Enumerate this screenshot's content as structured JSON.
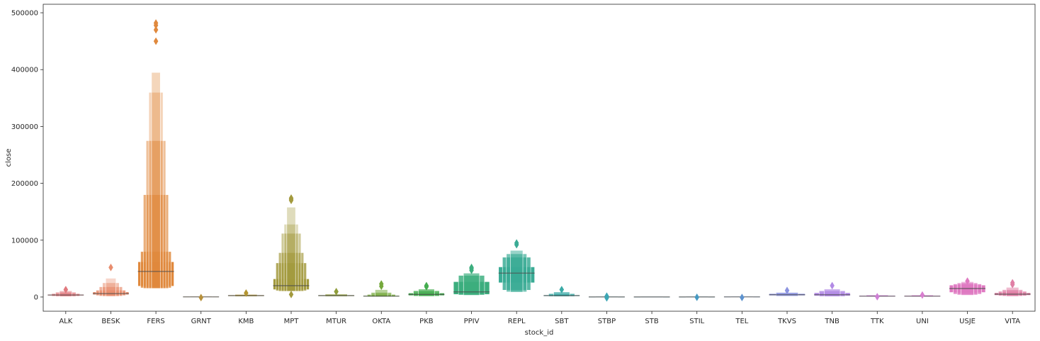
{
  "chart_data": {
    "type": "boxen",
    "xlabel": "stock_id",
    "ylabel": "close",
    "ylim": [
      -25000,
      515000
    ],
    "yticks": [
      0,
      100000,
      200000,
      300000,
      400000,
      500000
    ],
    "ytick_labels": [
      "0",
      "100000",
      "200000",
      "300000",
      "400000",
      "500000"
    ],
    "grid": false,
    "categories": [
      "ALK",
      "BESK",
      "FERS",
      "GRNT",
      "KMB",
      "MPT",
      "MTUR",
      "OKTA",
      "PKB",
      "PPIV",
      "REPL",
      "SBT",
      "STBP",
      "STB",
      "STIL",
      "TEL",
      "TKVS",
      "TNB",
      "TTK",
      "UNI",
      "USJE",
      "VITA"
    ],
    "series": [
      {
        "category": "ALK",
        "color": "#e1797e",
        "median": 3500,
        "boxes": [
          [
            2500,
            4500
          ],
          [
            1500,
            6000
          ],
          [
            1000,
            8500
          ],
          [
            800,
            11000
          ]
        ],
        "outliers": [
          13000
        ]
      },
      {
        "category": "BESK",
        "color": "#e88d6e",
        "median": 6000,
        "boxes": [
          [
            4000,
            9000
          ],
          [
            2500,
            12000
          ],
          [
            1500,
            18000
          ],
          [
            1200,
            25000
          ],
          [
            1000,
            33000
          ]
        ],
        "outliers": [
          52000
        ]
      },
      {
        "category": "FERS",
        "color": "#e0893d",
        "median": 45000,
        "boxes": [
          [
            19000,
            62000
          ],
          [
            16000,
            80000
          ],
          [
            15000,
            180000
          ],
          [
            15000,
            275000
          ],
          [
            15000,
            360000
          ],
          [
            15000,
            395000
          ]
        ],
        "outliers": [
          450000,
          470000,
          478000,
          482000
        ]
      },
      {
        "category": "GRNT",
        "color": "#b7903a",
        "median": 300,
        "boxes": [
          [
            100,
            700
          ],
          [
            50,
            1200
          ]
        ],
        "outliers": [
          -1000
        ]
      },
      {
        "category": "KMB",
        "color": "#b39530",
        "median": 2500,
        "boxes": [
          [
            1500,
            3500
          ],
          [
            1000,
            4500
          ]
        ],
        "outliers": [
          7000
        ]
      },
      {
        "category": "MPT",
        "color": "#a39a3e",
        "median": 20000,
        "boxes": [
          [
            13000,
            32000
          ],
          [
            11000,
            60000
          ],
          [
            10000,
            78000
          ],
          [
            10000,
            112000
          ],
          [
            10000,
            128000
          ],
          [
            10000,
            158000
          ]
        ],
        "outliers": [
          4500,
          170000,
          172000,
          174000
        ]
      },
      {
        "category": "MTUR",
        "color": "#8f9d3a",
        "median": 2500,
        "boxes": [
          [
            1500,
            3500
          ],
          [
            1000,
            5000
          ]
        ],
        "outliers": [
          9500
        ]
      },
      {
        "category": "OKTA",
        "color": "#75a83c",
        "median": 1500,
        "boxes": [
          [
            800,
            2500
          ],
          [
            500,
            4500
          ],
          [
            400,
            8000
          ],
          [
            300,
            13000
          ]
        ],
        "outliers": [
          19000,
          23000
        ]
      },
      {
        "category": "PKB",
        "color": "#45ad50",
        "median": 4500,
        "boxes": [
          [
            2500,
            7000
          ],
          [
            1500,
            11000
          ],
          [
            1200,
            14000
          ]
        ],
        "outliers": [
          18000,
          20000
        ]
      },
      {
        "category": "PPIV",
        "color": "#3cae7e",
        "median": 9000,
        "boxes": [
          [
            4500,
            27000
          ],
          [
            3500,
            38000
          ],
          [
            3000,
            42000
          ]
        ],
        "outliers": [
          47000,
          50000,
          52000
        ]
      },
      {
        "category": "REPL",
        "color": "#3aab95",
        "median": 42000,
        "boxes": [
          [
            25000,
            53000
          ],
          [
            12000,
            70000
          ],
          [
            9000,
            76000
          ],
          [
            8500,
            82000
          ]
        ],
        "outliers": [
          92000,
          95000
        ]
      },
      {
        "category": "SBT",
        "color": "#3aaaa6",
        "median": 2500,
        "boxes": [
          [
            1500,
            3500
          ],
          [
            1000,
            6000
          ],
          [
            800,
            9000
          ]
        ],
        "outliers": [
          13000
        ]
      },
      {
        "category": "STBP",
        "color": "#3ca7b5",
        "median": 200,
        "boxes": [
          [
            100,
            500
          ],
          [
            0,
            800
          ]
        ],
        "outliers": [
          1500,
          -1500
        ]
      },
      {
        "category": "STB",
        "color": "#3f9fbc",
        "median": 200,
        "boxes": [
          [
            100,
            400
          ],
          [
            0,
            600
          ]
        ],
        "outliers": []
      },
      {
        "category": "STIL",
        "color": "#4699c2",
        "median": 200,
        "boxes": [
          [
            100,
            400
          ],
          [
            0,
            700
          ]
        ],
        "outliers": [
          -500
        ]
      },
      {
        "category": "TEL",
        "color": "#5d93cf",
        "median": 300,
        "boxes": [
          [
            100,
            600
          ],
          [
            0,
            900
          ]
        ],
        "outliers": [
          -800
        ]
      },
      {
        "category": "TKVS",
        "color": "#8b93e0",
        "median": 4000,
        "boxes": [
          [
            2500,
            6000
          ],
          [
            1500,
            8000
          ]
        ],
        "outliers": [
          11500
        ]
      },
      {
        "category": "TNB",
        "color": "#b28ae5",
        "median": 4000,
        "boxes": [
          [
            2000,
            7500
          ],
          [
            1000,
            11000
          ],
          [
            800,
            14000
          ]
        ],
        "outliers": [
          20000
        ]
      },
      {
        "category": "TTK",
        "color": "#cf7fd6",
        "median": 1500,
        "boxes": [
          [
            800,
            2500
          ],
          [
            500,
            3500
          ]
        ],
        "outliers": [
          500
        ]
      },
      {
        "category": "UNI",
        "color": "#d97fd0",
        "median": 1500,
        "boxes": [
          [
            800,
            2500
          ],
          [
            500,
            3500
          ]
        ],
        "outliers": [
          3500
        ]
      },
      {
        "category": "USJE",
        "color": "#df79c1",
        "median": 15000,
        "boxes": [
          [
            8000,
            21000
          ],
          [
            5000,
            23000
          ],
          [
            3500,
            25000
          ],
          [
            3000,
            27000
          ]
        ],
        "outliers": [
          28000
        ]
      },
      {
        "category": "VITA",
        "color": "#e07fa5",
        "median": 5000,
        "boxes": [
          [
            3000,
            7500
          ],
          [
            2000,
            10000
          ],
          [
            1500,
            13000
          ],
          [
            1000,
            17000
          ]
        ],
        "outliers": [
          22000,
          25000
        ]
      }
    ]
  }
}
